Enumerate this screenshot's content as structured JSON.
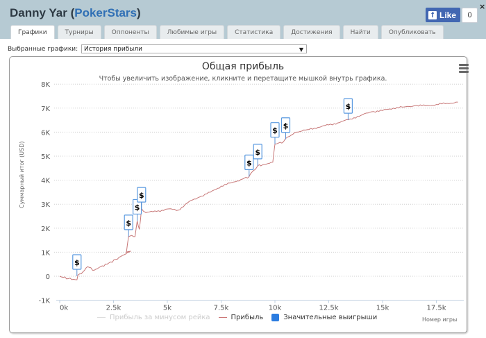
{
  "header": {
    "player": "Danny Yar",
    "site": "PokerStars",
    "fb_like_label": "Like",
    "fb_like_count": "0",
    "close_icon": "×"
  },
  "tabs": [
    {
      "label": "Графики",
      "active": true
    },
    {
      "label": "Турниры"
    },
    {
      "label": "Оппоненты"
    },
    {
      "label": "Любимые игры"
    },
    {
      "label": "Статистика"
    },
    {
      "label": "Достижения"
    },
    {
      "label": "Найти"
    },
    {
      "label": "Опубликовать"
    }
  ],
  "selector": {
    "label": "Выбранные графики:",
    "value": "История прибыли"
  },
  "chart_data": {
    "type": "line",
    "title": "Общая прибыль",
    "subtitle": "Чтобы увеличить изображение, кликните и перетащите мышкой внутрь графика.",
    "xlabel": "Номер игры",
    "ylabel": "Суммарный итог (USD)",
    "xlim": [
      0,
      19000
    ],
    "ylim": [
      -1000,
      8000
    ],
    "x_ticks": [
      "0k",
      "2.5k",
      "5k",
      "7.5k",
      "10k",
      "12.5k",
      "15k",
      "17.5k"
    ],
    "y_ticks": [
      "8K",
      "7K",
      "6K",
      "5K",
      "4K",
      "3K",
      "2K",
      "1K",
      "0",
      "-1K"
    ],
    "grid": true,
    "legend": [
      "Прибыль за минусом рейка",
      "Прибыль",
      "Значительные выигрыши"
    ],
    "legend_position": "bottom",
    "series": [
      {
        "name": "Прибыль",
        "color": "#c77777",
        "x": [
          0,
          400,
          800,
          850,
          1000,
          1300,
          1600,
          1900,
          2200,
          2600,
          3000,
          3300,
          3100,
          3200,
          3350,
          3500,
          3600,
          3700,
          3800,
          3850,
          3900,
          4000,
          4500,
          5000,
          5500,
          6000,
          6500,
          7000,
          7500,
          8000,
          8500,
          8800,
          9000,
          9200,
          9500,
          9900,
          10000,
          10400,
          10600,
          11000,
          11500,
          12000,
          12500,
          13000,
          13500,
          14000,
          14500,
          15000,
          15500,
          16000,
          16500,
          17000,
          17500,
          18000,
          18500
        ],
        "y": [
          0,
          -100,
          -150,
          50,
          100,
          400,
          250,
          400,
          500,
          700,
          900,
          1050,
          1000,
          1650,
          1700,
          1650,
          2300,
          1950,
          2800,
          2750,
          2700,
          2650,
          2700,
          2800,
          2750,
          3100,
          3300,
          3500,
          3750,
          3900,
          4050,
          4150,
          4400,
          4600,
          4650,
          4750,
          5500,
          5600,
          5800,
          6000,
          6100,
          6200,
          6300,
          6400,
          6550,
          6700,
          6850,
          6900,
          7000,
          7050,
          7100,
          7100,
          7150,
          7200,
          7250
        ]
      },
      {
        "name": "Прибыль за минусом рейка",
        "color": "#dddddd",
        "x": [],
        "y": []
      }
    ],
    "flags": [
      {
        "x": 800,
        "y": 0,
        "label": "$"
      },
      {
        "x": 3200,
        "y": 1650,
        "label": "$"
      },
      {
        "x": 3600,
        "y": 2300,
        "label": "$"
      },
      {
        "x": 3800,
        "y": 2800,
        "label": "$"
      },
      {
        "x": 8800,
        "y": 4150,
        "label": "$"
      },
      {
        "x": 9200,
        "y": 4600,
        "label": "$"
      },
      {
        "x": 10000,
        "y": 5500,
        "label": "$"
      },
      {
        "x": 10500,
        "y": 5700,
        "label": "$"
      },
      {
        "x": 13400,
        "y": 6500,
        "label": "$"
      }
    ]
  }
}
